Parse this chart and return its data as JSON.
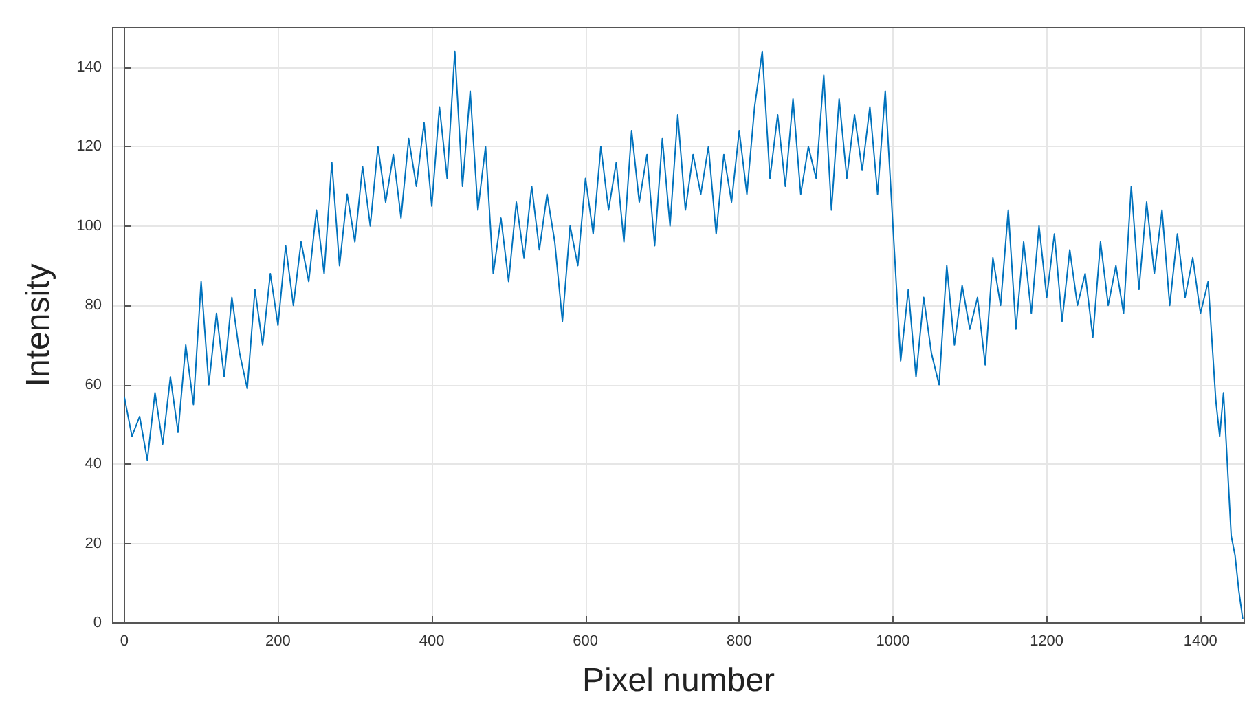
{
  "chart_data": {
    "type": "line",
    "xlabel": "Pixel number",
    "ylabel": "Intensity",
    "xlim": [
      -15,
      1457
    ],
    "xticks": [
      0,
      200,
      400,
      600,
      800,
      1000,
      1200,
      1400
    ],
    "ylim": [
      0,
      150
    ],
    "yticks": [
      0,
      20,
      40,
      60,
      80,
      100,
      120,
      140
    ],
    "grid": true,
    "marker": "none",
    "line_style": "solid",
    "series": [
      {
        "color": "#0072bd",
        "x": [
          0,
          10,
          20,
          30,
          40,
          50,
          60,
          70,
          80,
          90,
          100,
          110,
          120,
          130,
          140,
          150,
          160,
          170,
          180,
          190,
          200,
          210,
          220,
          230,
          240,
          250,
          260,
          270,
          280,
          290,
          300,
          310,
          320,
          330,
          340,
          350,
          360,
          370,
          380,
          390,
          400,
          410,
          420,
          430,
          440,
          450,
          460,
          470,
          480,
          490,
          500,
          510,
          520,
          530,
          540,
          550,
          560,
          570,
          580,
          590,
          600,
          610,
          620,
          630,
          640,
          650,
          660,
          670,
          680,
          690,
          700,
          710,
          720,
          730,
          740,
          750,
          760,
          770,
          780,
          790,
          800,
          810,
          820,
          830,
          840,
          850,
          860,
          870,
          880,
          890,
          900,
          910,
          920,
          930,
          940,
          950,
          960,
          970,
          980,
          990,
          1000,
          1010,
          1020,
          1030,
          1040,
          1050,
          1060,
          1070,
          1080,
          1090,
          1100,
          1110,
          1120,
          1130,
          1140,
          1150,
          1160,
          1170,
          1180,
          1190,
          1200,
          1210,
          1220,
          1230,
          1240,
          1250,
          1260,
          1270,
          1280,
          1290,
          1300,
          1310,
          1320,
          1330,
          1340,
          1350,
          1360,
          1370,
          1380,
          1390,
          1400,
          1410,
          1420,
          1425,
          1430,
          1440,
          1445,
          1450,
          1455
        ],
        "values": [
          57,
          47,
          52,
          41,
          58,
          45,
          62,
          48,
          70,
          55,
          86,
          60,
          78,
          62,
          82,
          68,
          59,
          84,
          70,
          88,
          75,
          95,
          80,
          96,
          86,
          104,
          88,
          116,
          90,
          108,
          96,
          115,
          100,
          120,
          106,
          118,
          102,
          122,
          110,
          126,
          105,
          130,
          112,
          144,
          110,
          134,
          104,
          120,
          88,
          102,
          86,
          106,
          92,
          110,
          94,
          108,
          96,
          76,
          100,
          90,
          112,
          98,
          120,
          104,
          116,
          96,
          124,
          106,
          118,
          95,
          122,
          100,
          128,
          104,
          118,
          108,
          120,
          98,
          118,
          106,
          124,
          108,
          130,
          144,
          112,
          128,
          110,
          132,
          108,
          120,
          112,
          138,
          104,
          132,
          112,
          128,
          114,
          130,
          108,
          134,
          100,
          66,
          84,
          62,
          82,
          68,
          60,
          90,
          70,
          85,
          74,
          82,
          65,
          92,
          80,
          104,
          74,
          96,
          78,
          100,
          82,
          98,
          76,
          94,
          80,
          88,
          72,
          96,
          80,
          90,
          78,
          110,
          84,
          106,
          88,
          104,
          80,
          98,
          82,
          92,
          78,
          86,
          56,
          47,
          58,
          22,
          17,
          8,
          1
        ]
      }
    ]
  }
}
